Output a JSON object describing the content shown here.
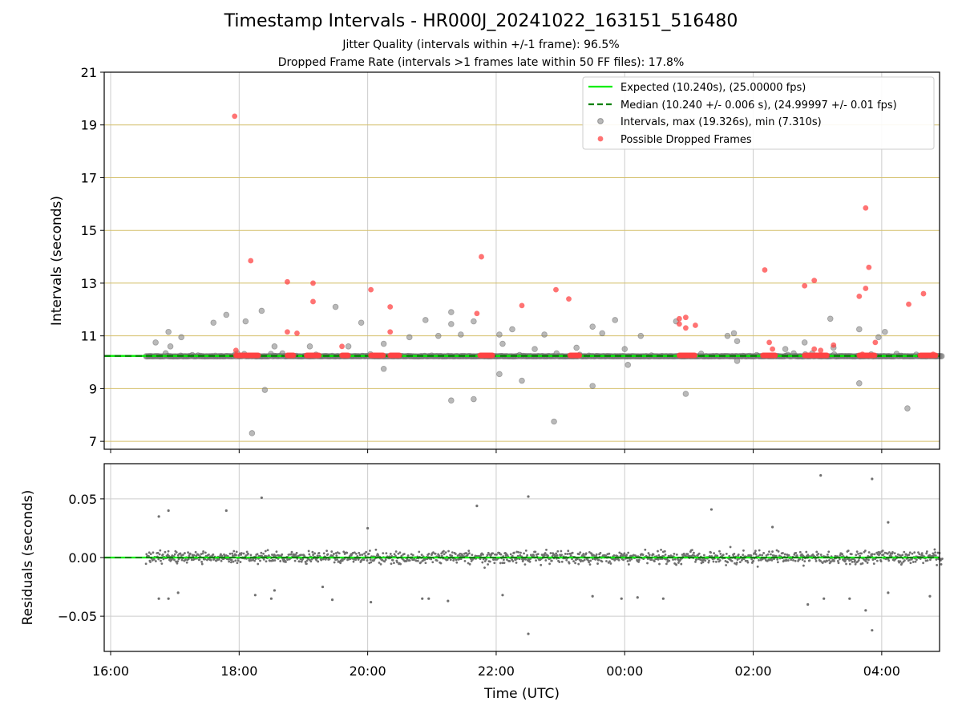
{
  "figure": {
    "title": "Timestamp Intervals - HR000J_20241022_163151_516480",
    "subtitle_line1": "Jitter Quality (intervals within +/-1 frame): 96.5%",
    "subtitle_line2": "Dropped Frame Rate (intervals >1 frames late within 50 FF files): 17.8%"
  },
  "colors": {
    "expected": "#00ee00",
    "median": "#008000",
    "intervals": "#808080",
    "dropped": "#ff4444",
    "gold_grid": "#d4bf6a",
    "grid": "#cccccc"
  },
  "chart_data": [
    {
      "type": "scatter",
      "ylabel": "Intervals (seconds)",
      "xlabel": "",
      "xlim": [
        15.9,
        28.9
      ],
      "ylim": [
        6.7,
        21
      ],
      "yticks": [
        "7",
        "9",
        "11",
        "13",
        "15",
        "17",
        "19",
        "21"
      ],
      "grid": true,
      "legend_position": "top-right",
      "legend": [
        "Expected (10.240s), (25.00000 fps)",
        "Median (10.240 +/- 0.006 s), (24.99997 +/- 0.01 fps)",
        "Intervals, max (19.326s), min (7.310s)",
        "Possible Dropped Frames"
      ],
      "expected_interval": 10.24,
      "median_interval": 10.24,
      "series": [
        {
          "name": "Intervals, max (19.326s), min (7.310s)",
          "note_points": "outlier intervals (hours since 00:00 of start day, seconds); a dense band sits at 10.24 s from 16:35 to 28:55",
          "points": [
            [
              16.7,
              10.75
            ],
            [
              16.9,
              11.15
            ],
            [
              16.93,
              10.6
            ],
            [
              17.1,
              10.95
            ],
            [
              17.6,
              11.5
            ],
            [
              17.8,
              11.8
            ],
            [
              18.1,
              11.55
            ],
            [
              18.2,
              7.31
            ],
            [
              18.35,
              11.95
            ],
            [
              18.4,
              8.95
            ],
            [
              18.55,
              10.6
            ],
            [
              19.1,
              10.6
            ],
            [
              19.5,
              12.1
            ],
            [
              19.7,
              10.6
            ],
            [
              19.9,
              11.5
            ],
            [
              20.25,
              9.75
            ],
            [
              20.25,
              10.7
            ],
            [
              20.65,
              10.95
            ],
            [
              20.9,
              11.6
            ],
            [
              21.1,
              11.0
            ],
            [
              21.3,
              11.9
            ],
            [
              21.3,
              11.45
            ],
            [
              21.3,
              8.55
            ],
            [
              21.45,
              11.05
            ],
            [
              21.65,
              11.55
            ],
            [
              21.65,
              8.6
            ],
            [
              22.05,
              11.05
            ],
            [
              22.1,
              10.7
            ],
            [
              22.05,
              9.55
            ],
            [
              22.25,
              11.25
            ],
            [
              22.4,
              9.3
            ],
            [
              22.6,
              10.5
            ],
            [
              22.75,
              11.05
            ],
            [
              22.9,
              7.75
            ],
            [
              23.25,
              10.55
            ],
            [
              23.5,
              11.35
            ],
            [
              23.5,
              9.1
            ],
            [
              23.65,
              11.1
            ],
            [
              23.85,
              11.6
            ],
            [
              24.0,
              10.5
            ],
            [
              24.05,
              9.9
            ],
            [
              24.25,
              11.0
            ],
            [
              24.8,
              11.55
            ],
            [
              24.95,
              8.8
            ],
            [
              25.6,
              11.0
            ],
            [
              25.7,
              11.1
            ],
            [
              25.75,
              10.8
            ],
            [
              25.75,
              10.05
            ],
            [
              26.5,
              10.5
            ],
            [
              26.8,
              10.75
            ],
            [
              27.2,
              11.65
            ],
            [
              27.25,
              10.55
            ],
            [
              27.65,
              11.25
            ],
            [
              27.65,
              9.2
            ],
            [
              27.95,
              10.95
            ],
            [
              28.05,
              11.15
            ],
            [
              28.4,
              8.25
            ]
          ]
        },
        {
          "name": "Possible Dropped Frames",
          "note_points": "isolated late intervals (hours, seconds); also clusters at 10.24 s",
          "points": [
            [
              17.93,
              19.33
            ],
            [
              17.95,
              10.45
            ],
            [
              18.18,
              13.85
            ],
            [
              18.75,
              13.05
            ],
            [
              18.75,
              11.15
            ],
            [
              18.9,
              11.1
            ],
            [
              19.15,
              13.0
            ],
            [
              19.15,
              12.3
            ],
            [
              19.6,
              10.6
            ],
            [
              20.05,
              12.75
            ],
            [
              20.35,
              12.1
            ],
            [
              20.35,
              11.15
            ],
            [
              21.7,
              11.85
            ],
            [
              21.77,
              14.0
            ],
            [
              22.4,
              12.15
            ],
            [
              22.93,
              12.75
            ],
            [
              23.13,
              12.4
            ],
            [
              24.85,
              11.65
            ],
            [
              24.85,
              11.45
            ],
            [
              24.95,
              11.7
            ],
            [
              24.95,
              11.3
            ],
            [
              25.1,
              11.4
            ],
            [
              26.18,
              13.5
            ],
            [
              26.25,
              10.75
            ],
            [
              26.3,
              10.5
            ],
            [
              26.8,
              12.9
            ],
            [
              26.95,
              13.1
            ],
            [
              26.95,
              10.5
            ],
            [
              27.05,
              10.45
            ],
            [
              27.25,
              10.65
            ],
            [
              27.65,
              12.5
            ],
            [
              27.7,
              10.3
            ],
            [
              27.75,
              12.8
            ],
            [
              27.75,
              15.85
            ],
            [
              27.8,
              13.6
            ],
            [
              27.9,
              10.75
            ],
            [
              28.42,
              12.2
            ],
            [
              28.65,
              12.6
            ],
            [
              28.8,
              10.3
            ]
          ]
        }
      ]
    },
    {
      "type": "scatter",
      "ylabel": "Residuals (seconds)",
      "xlabel": "Time (UTC)",
      "xlim": [
        15.9,
        28.9
      ],
      "ylim": [
        -0.08,
        0.08
      ],
      "yticks": [
        "0.05",
        "0.00",
        "−0.05"
      ],
      "xticks": [
        "16:00",
        "18:00",
        "20:00",
        "22:00",
        "00:00",
        "02:00",
        "04:00"
      ],
      "grid": true,
      "series": [
        {
          "name": "Residuals",
          "note_points": "outlier residuals (hours, seconds); dense noisy band within about ±0.02 s",
          "points": [
            [
              16.75,
              0.035
            ],
            [
              16.9,
              0.04
            ],
            [
              16.75,
              -0.035
            ],
            [
              16.9,
              -0.035
            ],
            [
              17.05,
              -0.03
            ],
            [
              17.8,
              0.04
            ],
            [
              18.35,
              0.051
            ],
            [
              18.25,
              -0.032
            ],
            [
              18.5,
              -0.035
            ],
            [
              18.55,
              -0.028
            ],
            [
              19.3,
              -0.025
            ],
            [
              19.45,
              -0.036
            ],
            [
              20.0,
              0.025
            ],
            [
              20.05,
              -0.038
            ],
            [
              20.85,
              -0.035
            ],
            [
              20.95,
              -0.035
            ],
            [
              21.25,
              -0.037
            ],
            [
              21.7,
              0.044
            ],
            [
              22.1,
              -0.032
            ],
            [
              22.5,
              0.052
            ],
            [
              22.5,
              -0.065
            ],
            [
              23.5,
              -0.033
            ],
            [
              23.95,
              -0.035
            ],
            [
              24.2,
              -0.034
            ],
            [
              24.6,
              -0.035
            ],
            [
              25.35,
              0.041
            ],
            [
              26.3,
              0.026
            ],
            [
              26.85,
              -0.04
            ],
            [
              27.05,
              0.07
            ],
            [
              27.1,
              -0.035
            ],
            [
              27.5,
              -0.035
            ],
            [
              27.75,
              -0.045
            ],
            [
              27.85,
              0.067
            ],
            [
              27.85,
              -0.062
            ],
            [
              28.1,
              0.03
            ],
            [
              28.1,
              -0.03
            ],
            [
              28.75,
              -0.033
            ]
          ]
        }
      ]
    }
  ]
}
